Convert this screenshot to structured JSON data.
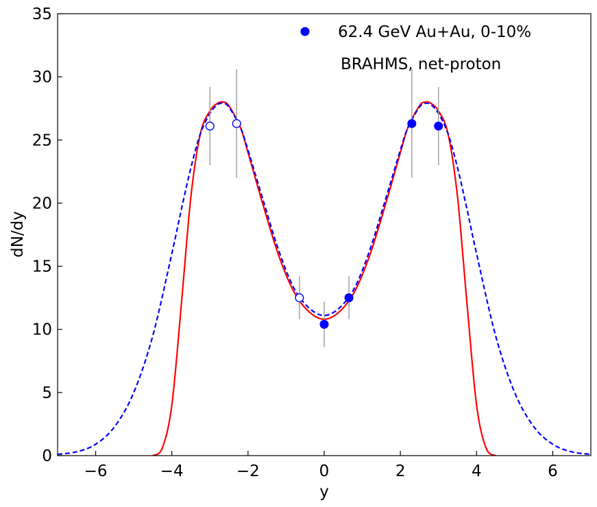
{
  "chart_data": {
    "type": "scatter",
    "xlabel": "y",
    "ylabel": "dN/dy",
    "xlim": [
      -7,
      7
    ],
    "ylim": [
      0,
      35
    ],
    "xticks": [
      -6,
      -4,
      -2,
      0,
      2,
      4,
      6
    ],
    "xtick_labels": [
      "−6",
      "−4",
      "−2",
      "0",
      "2",
      "4",
      "6"
    ],
    "yticks": [
      0,
      5,
      10,
      15,
      20,
      25,
      30,
      35
    ],
    "ytick_labels": [
      "0",
      "5",
      "10",
      "15",
      "20",
      "25",
      "30",
      "35"
    ],
    "grid": false,
    "legend_position": "top-right",
    "legend_entry": "62.4 GeV Au+Au, 0-10%",
    "annotation": "BRAHMS, net-proton",
    "colors": {
      "data": "#0000ff",
      "solid_curve": "#ff0000",
      "dashed_curve": "#0000ff",
      "error_bar": "#a0a0a0"
    },
    "measured_points": [
      {
        "x": 0.0,
        "y": 10.4,
        "err": 1.8
      },
      {
        "x": 0.65,
        "y": 12.5,
        "err": 1.7
      },
      {
        "x": 2.3,
        "y": 26.3,
        "err": 4.3
      },
      {
        "x": 3.0,
        "y": 26.1,
        "err": 3.1
      }
    ],
    "reflected_points": [
      {
        "x": -3.0,
        "y": 26.1,
        "err": 3.1
      },
      {
        "x": -2.3,
        "y": 26.3,
        "err": 4.3
      },
      {
        "x": -0.65,
        "y": 12.5,
        "err": 1.7
      }
    ],
    "series": [
      {
        "style": "solid",
        "color": "#ff0000",
        "x": [
          -4.5,
          -4.25,
          -4.0,
          -3.75,
          -3.5,
          -3.25,
          -3.0,
          -2.8,
          -2.65,
          -2.5,
          -2.2,
          -2.0,
          -1.6,
          -1.2,
          -0.8,
          -0.4,
          0.0,
          0.4,
          0.8,
          1.2,
          1.6,
          2.0,
          2.2,
          2.5,
          2.65,
          2.8,
          3.0,
          3.25,
          3.5,
          3.75,
          4.0,
          4.25,
          4.5
        ],
        "y": [
          0.0,
          0.6,
          4.0,
          12.0,
          20.5,
          25.5,
          27.3,
          27.9,
          28.0,
          27.7,
          26.0,
          24.0,
          19.8,
          15.9,
          13.0,
          11.4,
          10.8,
          11.4,
          13.0,
          15.9,
          19.8,
          24.0,
          26.0,
          27.7,
          28.0,
          27.9,
          27.3,
          25.5,
          20.5,
          12.0,
          4.0,
          0.6,
          0.0
        ]
      },
      {
        "style": "dashed",
        "color": "#0000ff",
        "x": [
          -7.0,
          -6.5,
          -6.0,
          -5.5,
          -5.0,
          -4.5,
          -4.0,
          -3.75,
          -3.5,
          -3.25,
          -3.0,
          -2.8,
          -2.65,
          -2.5,
          -2.2,
          -2.0,
          -1.6,
          -1.2,
          -0.8,
          -0.4,
          0.0,
          0.4,
          0.8,
          1.2,
          1.6,
          2.0,
          2.2,
          2.5,
          2.65,
          2.8,
          3.0,
          3.25,
          3.5,
          3.75,
          4.0,
          4.5,
          5.0,
          5.5,
          6.0,
          6.5,
          7.0
        ],
        "y": [
          0.1,
          0.3,
          0.9,
          2.3,
          5.0,
          9.5,
          16.0,
          19.5,
          22.8,
          25.5,
          27.1,
          27.8,
          27.9,
          27.6,
          26.0,
          24.2,
          20.2,
          16.3,
          13.3,
          11.7,
          11.1,
          11.7,
          13.3,
          16.3,
          20.2,
          24.2,
          26.0,
          27.6,
          27.9,
          27.8,
          27.1,
          25.5,
          22.8,
          19.5,
          16.0,
          9.5,
          5.0,
          2.3,
          0.9,
          0.3,
          0.1
        ]
      }
    ]
  }
}
